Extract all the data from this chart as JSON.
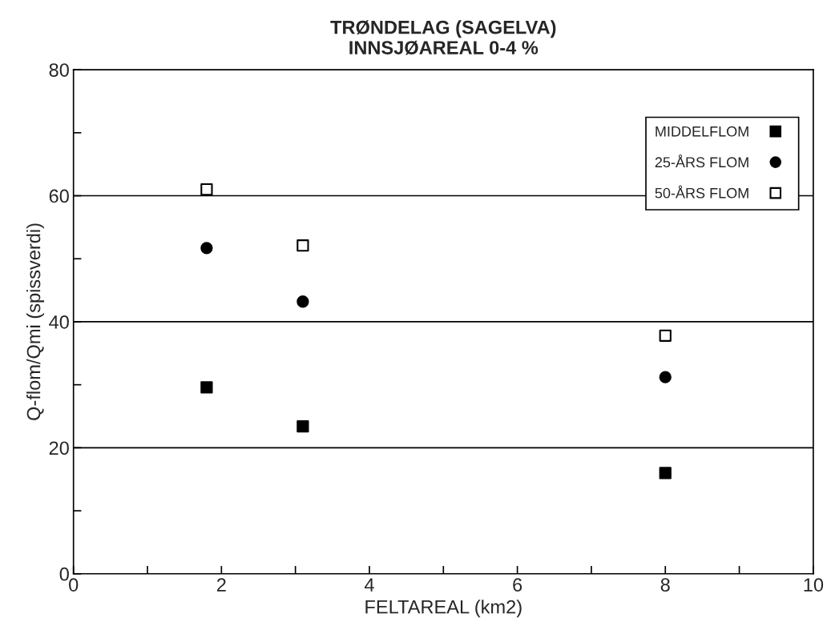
{
  "chart_data": {
    "type": "scatter",
    "title": "TRØNDELAG (SAGELVA)\nINNSJØAREAL 0-4 %",
    "xlabel": "FELTAREAL (km2)",
    "ylabel": "Q-flom/Qmi (spissverdi)",
    "x": [
      1.8,
      3.1,
      8.0
    ],
    "series": [
      {
        "name": "MIDDELFLOM",
        "color": "#000000",
        "marker": "square",
        "values": [
          29.6,
          23.4,
          16.0
        ]
      },
      {
        "name": "25-ÅRS FLOM",
        "color": "#000000",
        "marker": "circle",
        "values": [
          51.7,
          43.2,
          31.2
        ]
      },
      {
        "name": "50-ÅRS FLOM",
        "color": "#ffffff",
        "marker": "square",
        "values": [
          61.0,
          52.1,
          37.8
        ]
      }
    ],
    "xlim": [
      0,
      10
    ],
    "ylim": [
      0,
      80
    ],
    "xticks": [
      0,
      {
        "value": 1,
        "label": null
      },
      2,
      {
        "value": 3,
        "label": null
      },
      4,
      {
        "value": 5,
        "label": null
      },
      6,
      {
        "value": 7,
        "label": null
      },
      8,
      {
        "value": 9,
        "label": null
      },
      10
    ],
    "yticks": [
      0,
      {
        "value": 10,
        "label": null
      },
      20,
      {
        "value": 30,
        "label": null
      },
      40,
      {
        "value": 50,
        "label": null
      },
      60,
      {
        "value": 70,
        "label": null
      },
      80
    ],
    "grid": "y",
    "legend": "top right"
  }
}
